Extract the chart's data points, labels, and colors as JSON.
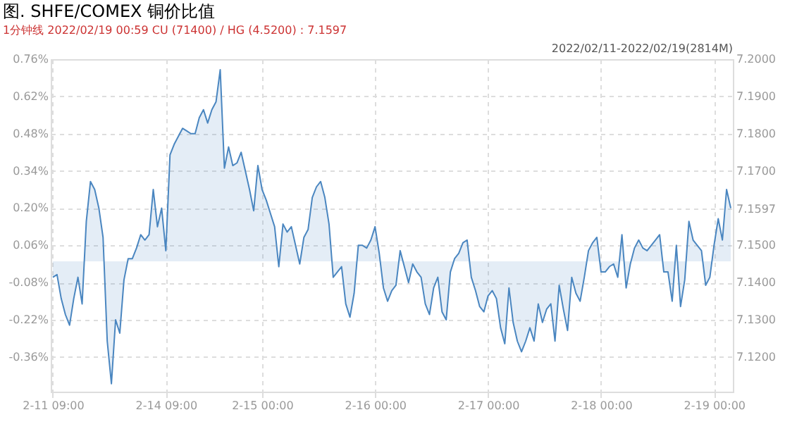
{
  "chart_data": {
    "type": "area",
    "title": "图. SHFE/COMEX 铜价比值",
    "subtitle": "1分钟线 2022/02/19 00:59 CU (71400) / HG (4.5200) : 7.1597",
    "annotations": [
      "2022/02/11-2022/02/19(2814M)"
    ],
    "categories": [
      "2-11 09:00",
      null,
      null,
      null,
      null,
      null,
      null,
      null,
      null,
      null,
      null,
      null,
      null,
      null,
      null,
      null,
      null,
      null,
      null,
      null,
      null,
      null,
      null,
      null,
      null,
      null,
      null,
      "2-14 09:00",
      null,
      null,
      null,
      null,
      null,
      null,
      null,
      null,
      null,
      null,
      null,
      null,
      null,
      null,
      null,
      null,
      null,
      null,
      null,
      null,
      null,
      null,
      "2-15 00:00",
      null,
      null,
      null,
      null,
      null,
      null,
      null,
      null,
      null,
      null,
      null,
      null,
      null,
      null,
      null,
      null,
      null,
      null,
      null,
      null,
      null,
      null,
      null,
      null,
      null,
      null,
      "2-16 00:00",
      null,
      null,
      null,
      null,
      null,
      null,
      null,
      null,
      null,
      null,
      null,
      null,
      null,
      null,
      null,
      null,
      null,
      null,
      null,
      null,
      null,
      null,
      null,
      null,
      null,
      null,
      "2-17 00:00",
      null,
      null,
      null,
      null,
      null,
      null,
      null,
      null,
      null,
      null,
      null,
      null,
      null,
      null,
      null,
      null,
      null,
      null,
      null,
      null,
      null,
      null,
      null,
      null,
      null,
      null,
      "2-18 00:00",
      null,
      null,
      null,
      null,
      null,
      null,
      null,
      null,
      null,
      null,
      null,
      null,
      null,
      null,
      null,
      null,
      null,
      null,
      null,
      null,
      null,
      null,
      null,
      null,
      null,
      null,
      "2-19 00:00",
      null,
      null,
      null,
      null
    ],
    "series": [
      {
        "color": "#4a86c0",
        "values": [
          -0.06,
          -0.05,
          -0.14,
          -0.2,
          -0.24,
          -0.14,
          -0.06,
          -0.16,
          0.15,
          0.3,
          0.27,
          0.2,
          0.09,
          -0.3,
          -0.46,
          -0.22,
          -0.27,
          -0.07,
          0.01,
          0.01,
          0.05,
          0.1,
          0.08,
          0.1,
          0.27,
          0.13,
          0.2,
          0.04,
          0.4,
          0.44,
          0.47,
          0.5,
          0.49,
          0.48,
          0.48,
          0.54,
          0.57,
          0.52,
          0.57,
          0.6,
          0.72,
          0.35,
          0.43,
          0.36,
          0.37,
          0.41,
          0.34,
          0.27,
          0.19,
          0.36,
          0.27,
          0.23,
          0.18,
          0.13,
          -0.02,
          0.14,
          0.11,
          0.13,
          0.06,
          -0.01,
          0.09,
          0.12,
          0.24,
          0.28,
          0.3,
          0.24,
          0.14,
          -0.06,
          -0.04,
          -0.02,
          -0.16,
          -0.21,
          -0.12,
          0.06,
          0.06,
          0.05,
          0.08,
          0.13,
          0.03,
          -0.1,
          -0.15,
          -0.11,
          -0.09,
          0.04,
          -0.02,
          -0.08,
          -0.01,
          -0.04,
          -0.06,
          -0.16,
          -0.2,
          -0.1,
          -0.06,
          -0.19,
          -0.22,
          -0.04,
          0.01,
          0.03,
          0.07,
          0.08,
          -0.06,
          -0.11,
          -0.17,
          -0.19,
          -0.13,
          -0.11,
          -0.14,
          -0.25,
          -0.31,
          -0.1,
          -0.23,
          -0.3,
          -0.34,
          -0.3,
          -0.25,
          -0.3,
          -0.16,
          -0.23,
          -0.18,
          -0.16,
          -0.3,
          -0.09,
          -0.18,
          -0.26,
          -0.06,
          -0.12,
          -0.15,
          -0.06,
          0.04,
          0.07,
          0.09,
          -0.04,
          -0.04,
          -0.02,
          -0.01,
          -0.06,
          0.1,
          -0.1,
          -0.01,
          0.05,
          0.08,
          0.05,
          0.04,
          0.06,
          0.08,
          0.1,
          -0.04,
          -0.04,
          -0.15,
          0.06,
          -0.17,
          -0.07,
          0.15,
          0.08,
          0.06,
          0.04,
          -0.09,
          -0.06,
          0.06,
          0.16,
          0.08,
          0.27,
          0.2
        ]
      }
    ],
    "ylim": [
      -0.49,
      0.76
    ],
    "yticks": [
      {
        "value": -0.36,
        "label": "-0.36%"
      },
      {
        "value": -0.22,
        "label": "-0.22%"
      },
      {
        "value": -0.08,
        "label": "-0.08%"
      },
      {
        "value": 0.06,
        "label": "0.06%"
      },
      {
        "value": 0.2,
        "label": "0.20%"
      },
      {
        "value": 0.34,
        "label": "0.34%"
      },
      {
        "value": 0.48,
        "label": "0.48%"
      },
      {
        "value": 0.62,
        "label": "0.62%"
      },
      {
        "value": 0.76,
        "label": "0.76%"
      }
    ],
    "y2lim": [
      7.1107,
      7.2
    ],
    "y2ticks": [
      {
        "value": 7.12,
        "label": "7.1200"
      },
      {
        "value": 7.13,
        "label": "7.1300"
      },
      {
        "value": 7.14,
        "label": "7.1400"
      },
      {
        "value": 7.15,
        "label": "7.1500"
      },
      {
        "value": 7.1597,
        "label": "7.1597"
      },
      {
        "value": 7.17,
        "label": "7.1700"
      },
      {
        "value": 7.18,
        "label": "7.1800"
      },
      {
        "value": 7.19,
        "label": "7.1900"
      },
      {
        "value": 7.2,
        "label": "7.2000"
      }
    ],
    "grid": true
  }
}
